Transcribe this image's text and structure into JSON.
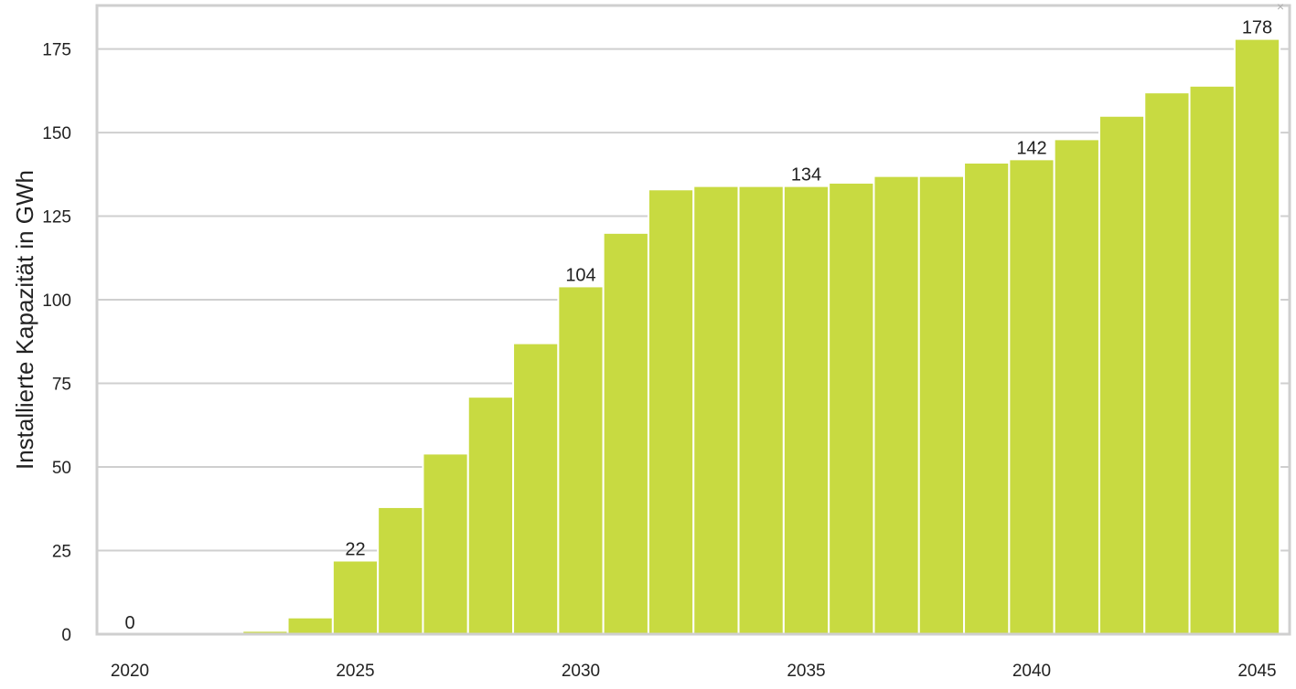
{
  "chart_data": {
    "type": "bar",
    "title": "",
    "ylabel": "Installierte Kapazität in GWh",
    "xlabel": "",
    "x": [
      2020,
      2021,
      2022,
      2023,
      2024,
      2025,
      2026,
      2027,
      2028,
      2029,
      2030,
      2031,
      2032,
      2033,
      2034,
      2035,
      2036,
      2037,
      2038,
      2039,
      2040,
      2041,
      2042,
      2043,
      2044,
      2045
    ],
    "values": [
      0,
      0,
      0,
      1,
      5,
      22,
      38,
      54,
      71,
      87,
      104,
      120,
      133,
      134,
      134,
      134,
      135,
      137,
      137,
      141,
      142,
      148,
      155,
      162,
      164,
      178
    ],
    "data_labels": [
      {
        "x": 2020,
        "text": "0"
      },
      {
        "x": 2025,
        "text": "22"
      },
      {
        "x": 2030,
        "text": "104"
      },
      {
        "x": 2035,
        "text": "134"
      },
      {
        "x": 2040,
        "text": "142"
      },
      {
        "x": 2045,
        "text": "178"
      }
    ],
    "x_ticks": [
      "2020",
      "2025",
      "2030",
      "2035",
      "2040",
      "2045"
    ],
    "y_ticks": [
      "0",
      "25",
      "50",
      "75",
      "100",
      "125",
      "150",
      "175"
    ],
    "ylim": [
      0,
      188
    ],
    "grid": true,
    "legend": "none",
    "colors": {
      "bar": "#c8da41",
      "grid": "#cfcfcf",
      "text": "#222222"
    }
  },
  "window": {
    "close_glyph": "×"
  }
}
